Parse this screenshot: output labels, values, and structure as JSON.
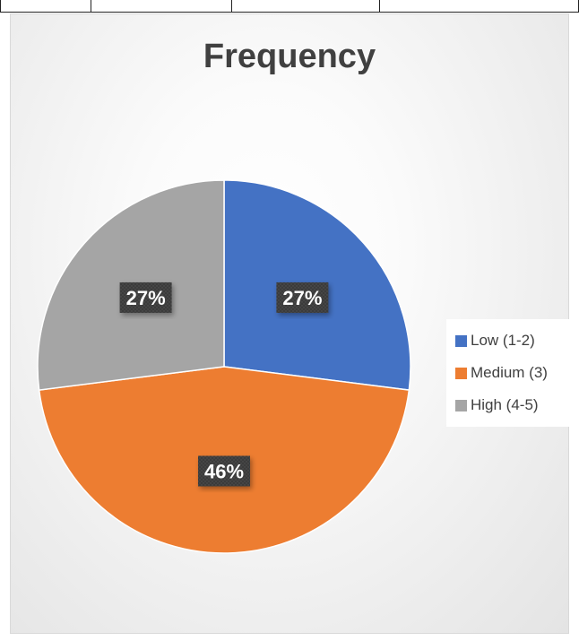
{
  "chart_data": {
    "type": "pie",
    "title": "Frequency",
    "categories": [
      "Low (1-2)",
      "Medium (3)",
      "High (4-5)"
    ],
    "values": [
      27,
      46,
      27
    ],
    "labels": [
      "27%",
      "46%",
      "27%"
    ],
    "colors": [
      "#4472c4",
      "#ed7d31",
      "#a5a5a5"
    ],
    "legend_position": "right"
  }
}
